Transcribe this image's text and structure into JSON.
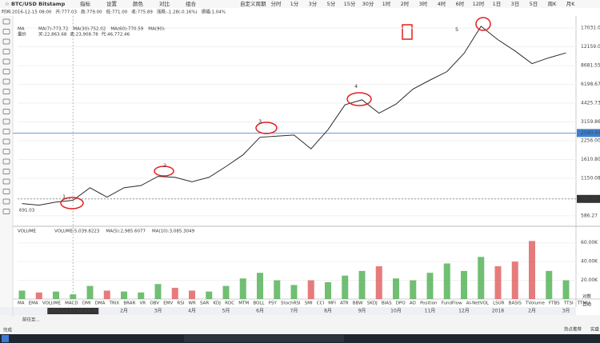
{
  "toolbar": {
    "symbol": "BTC/USD Bitstamp",
    "buttons": [
      "指标",
      "设置",
      "颜色",
      "对比",
      "组合"
    ],
    "custom": "自定义周期",
    "periods": [
      "分时",
      "1分",
      "3分",
      "5分",
      "15分",
      "30分",
      "1时",
      "2时",
      "3时",
      "4时",
      "6时",
      "12时",
      "1日",
      "3日",
      "5日",
      "周K",
      "月K"
    ],
    "active_period": 12
  },
  "info": [
    "时间:2016-12-15 08:00",
    "开:777.03",
    "高:779.00",
    "低:771.00",
    "收:775.89",
    "涨跌:-1.28(-0.16%)",
    "振幅:1.04%"
  ],
  "ma_legend": {
    "title": "MA",
    "items": [
      {
        "text": "MA(7):773.72",
        "color": "#e58a3a"
      },
      {
        "text": "MA(30):752.02",
        "color": "#46b058"
      },
      {
        "text": "MA(60):770.59",
        "color": "#3c8fd8"
      },
      {
        "text": "MA(90):",
        "color": "#9b59b6"
      }
    ]
  },
  "volume_price": {
    "title": "量价",
    "items": [
      "买:22,863.68",
      "卖:23,908.78",
      "代:46,772.46"
    ]
  },
  "volume_legend": {
    "title": "VOLUME",
    "items": [
      {
        "text": "VOLUME:5,039.8223",
        "color": "#333333"
      },
      {
        "text": "MA(5):2,985.6077",
        "color": "#46b058"
      },
      {
        "text": "MA(10):3,085.3049",
        "color": "#e58a3a"
      }
    ]
  },
  "annotations": [
    "1",
    "2",
    "3",
    "4",
    "5"
  ],
  "left_price_label": "691.03",
  "indicator_tabs": [
    "MA",
    "EMA",
    "VOLUME",
    "MACD",
    "DMI",
    "DMA",
    "TRIX",
    "BRAR",
    "VR",
    "OBV",
    "EMV",
    "RSI",
    "WR",
    "SAR",
    "KDJ",
    "ROC",
    "MTM",
    "BOLL",
    "PSY",
    "StochRSI",
    "SMI",
    "CCI",
    "MFI",
    "ATR",
    "BBW",
    "SKDJ",
    "BIAS",
    "DPO",
    "AO",
    "Position",
    "FundFlow",
    "AI-NetVOL",
    "LSUR",
    "BASIS",
    "TVolume",
    "FTBS",
    "TTSI",
    "TTMU"
  ],
  "scale_buttons": [
    "对数",
    "自动"
  ],
  "status": {
    "goto": "前往至...",
    "done": "完成",
    "hot": "热点推荐",
    "live": "实盘"
  },
  "chart_data": [
    {
      "type": "line",
      "log_scale": true,
      "color": "#2b2b2b",
      "categories": [
        null,
        null,
        null,
        "2016-12-15 08:00:00",
        null,
        null,
        "2月",
        null,
        "3月",
        null,
        "4月",
        null,
        "5月",
        null,
        "6月",
        null,
        "7月",
        null,
        "8月",
        null,
        "9月",
        null,
        "10月",
        null,
        "11月",
        null,
        "12月",
        null,
        "2018",
        null,
        "2月",
        null,
        "3月"
      ],
      "values": [
        730,
        710,
        750,
        775,
        970,
        820,
        970,
        1010,
        1190,
        1170,
        1080,
        1170,
        1420,
        1750,
        2400,
        2450,
        2500,
        1950,
        2750,
        4300,
        4700,
        3700,
        4350,
        5700,
        6700,
        7800,
        10800,
        17600,
        13800,
        11300,
        9000,
        10000,
        10900
      ],
      "ylim": [
        493,
        21150
      ],
      "yticks": [
        586.27,
        793.93,
        {
          "value": 1150.08,
          "label": "1150.08"
        },
        {
          "value": 1610.8,
          "label": "1610.80"
        },
        {
          "value": 2256,
          "label": "2256.00"
        },
        3159.86,
        4425.73,
        6198.67,
        8681.55,
        {
          "value": 12159,
          "label": "12159.00"
        },
        {
          "value": 17031,
          "label": "17031.00"
        }
      ],
      "price_line": 2590.45,
      "price_line_color": "#3c7fd0",
      "crosshair_price": 793.93,
      "grid": true
    },
    {
      "type": "bar",
      "up_color": "#4caf50",
      "down_color": "#e05a5a",
      "values": [
        9000,
        7000,
        8000,
        5000,
        14000,
        9000,
        8000,
        7000,
        16000,
        12000,
        9000,
        8000,
        14000,
        22000,
        28000,
        20000,
        15000,
        20000,
        18000,
        25000,
        30000,
        35000,
        22000,
        20000,
        28000,
        38000,
        30000,
        45000,
        35000,
        40000,
        62000,
        30000,
        20000
      ],
      "ylim": [
        0,
        76000
      ],
      "yticks": [
        {
          "value": 20000,
          "label": "20.00K"
        },
        {
          "value": 40000,
          "label": "40.00K"
        },
        {
          "value": 60000,
          "label": "60.00K"
        }
      ],
      "grid": true
    }
  ]
}
